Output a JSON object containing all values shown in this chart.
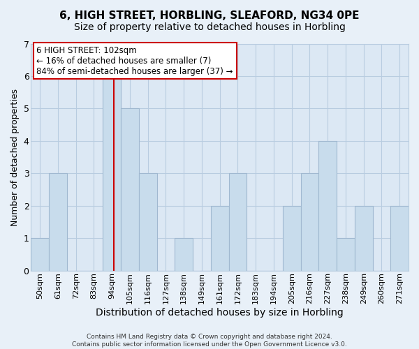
{
  "title": "6, HIGH STREET, HORBLING, SLEAFORD, NG34 0PE",
  "subtitle": "Size of property relative to detached houses in Horbling",
  "xlabel": "Distribution of detached houses by size in Horbling",
  "ylabel": "Number of detached properties",
  "bar_labels": [
    "50sqm",
    "61sqm",
    "72sqm",
    "83sqm",
    "94sqm",
    "105sqm",
    "116sqm",
    "127sqm",
    "138sqm",
    "149sqm",
    "161sqm",
    "172sqm",
    "183sqm",
    "194sqm",
    "205sqm",
    "216sqm",
    "227sqm",
    "238sqm",
    "249sqm",
    "260sqm",
    "271sqm"
  ],
  "bar_values": [
    1,
    3,
    0,
    0,
    6,
    5,
    3,
    0,
    1,
    0,
    2,
    3,
    0,
    0,
    2,
    3,
    4,
    1,
    2,
    0,
    2
  ],
  "bar_color": "#c8dcec",
  "bar_edge_color": "#a0b8d0",
  "highlight_bar_index": 4,
  "highlight_line_color": "#cc0000",
  "ylim": [
    0,
    7
  ],
  "yticks": [
    0,
    1,
    2,
    3,
    4,
    5,
    6,
    7
  ],
  "annotation_title": "6 HIGH STREET: 102sqm",
  "annotation_line1": "← 16% of detached houses are smaller (7)",
  "annotation_line2": "84% of semi-detached houses are larger (37) →",
  "annotation_box_color": "#ffffff",
  "annotation_box_edge": "#cc0000",
  "footer_line1": "Contains HM Land Registry data © Crown copyright and database right 2024.",
  "footer_line2": "Contains public sector information licensed under the Open Government Licence v3.0.",
  "background_color": "#e8f0f8",
  "plot_bg_color": "#dce8f4",
  "grid_color": "#b8cce0",
  "title_fontsize": 11,
  "subtitle_fontsize": 10,
  "xlabel_fontsize": 10,
  "ylabel_fontsize": 9,
  "tick_fontsize": 8
}
